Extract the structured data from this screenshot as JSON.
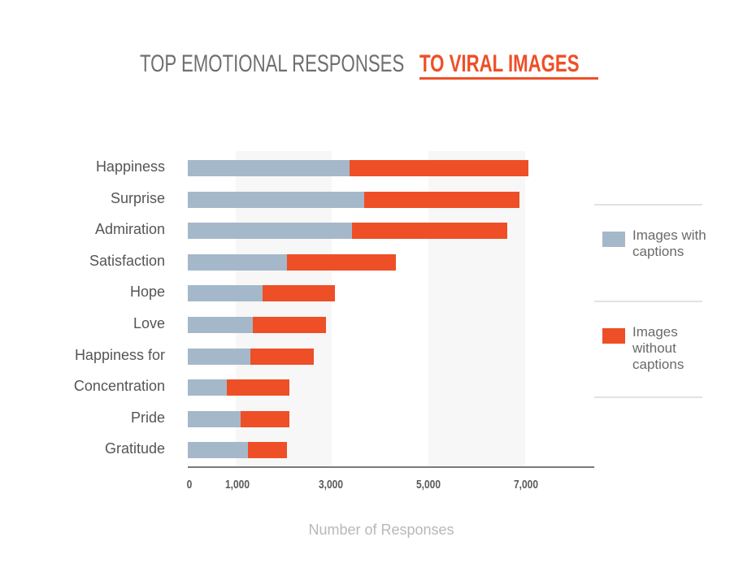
{
  "title": {
    "part1": "TOP EMOTIONAL RESPONSES",
    "part2": "TO VIRAL IMAGES"
  },
  "colors": {
    "with_captions": "#a5b8ca",
    "without_captions": "#ee4f27",
    "title_gray": "#6f6f6f",
    "accent": "#ee4f27"
  },
  "legend": {
    "items": [
      {
        "label": "Images with captions",
        "color": "#a5b8ca"
      },
      {
        "label": "Images without captions",
        "color": "#ee4f27"
      }
    ]
  },
  "x_axis": {
    "label": "Number of Responses",
    "ticks": [
      "0",
      "1,000",
      "3,000",
      "5,000",
      "7,000"
    ],
    "tick_values": [
      0,
      1000,
      3000,
      5000,
      7000
    ]
  },
  "chart_data": {
    "type": "bar",
    "orientation": "horizontal",
    "stacked": true,
    "title": "TOP EMOTIONAL RESPONSES TO VIRAL IMAGES",
    "xlabel": "Number of Responses",
    "ylabel": "",
    "xlim": [
      0,
      8400
    ],
    "x_ticks": [
      0,
      1000,
      3000,
      5000,
      7000
    ],
    "grid": "alternating shaded vertical bands",
    "legend_position": "right",
    "categories": [
      "Happiness",
      "Surprise",
      "Admiration",
      "Satisfaction",
      "Hope",
      "Love",
      "Happiness for",
      "Concentration",
      "Pride",
      "Gratitude"
    ],
    "series": [
      {
        "name": "Images with captions",
        "values": [
          3350,
          3650,
          3400,
          2050,
          1550,
          1350,
          1300,
          800,
          1100,
          1250
        ]
      },
      {
        "name": "Images without captions",
        "values": [
          3700,
          3200,
          3200,
          2250,
          1500,
          1500,
          1300,
          1300,
          1000,
          800
        ]
      }
    ]
  }
}
